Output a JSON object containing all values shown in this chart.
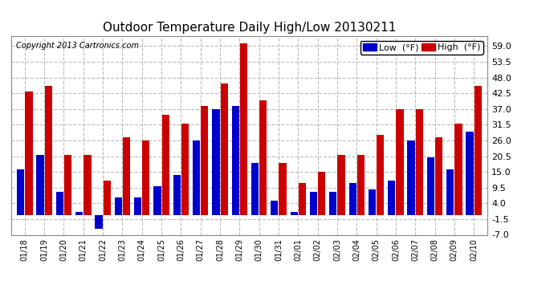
{
  "title": "Outdoor Temperature Daily High/Low 20130211",
  "copyright": "Copyright 2013 Cartronics.com",
  "legend_low": "Low  (°F)",
  "legend_high": "High  (°F)",
  "low_color": "#0000cc",
  "high_color": "#cc0000",
  "background_color": "#ffffff",
  "plot_bg_color": "#ffffff",
  "grid_color": "#bbbbbb",
  "border_color": "#888888",
  "ylim": [
    -7.0,
    62.5
  ],
  "yticks": [
    -7.0,
    -1.5,
    4.0,
    9.5,
    15.0,
    20.5,
    26.0,
    31.5,
    37.0,
    42.5,
    48.0,
    53.5,
    59.0
  ],
  "dates": [
    "01/18",
    "01/19",
    "01/20",
    "01/21",
    "01/22",
    "01/23",
    "01/24",
    "01/25",
    "01/26",
    "01/27",
    "01/28",
    "01/29",
    "01/30",
    "01/31",
    "02/01",
    "02/02",
    "02/03",
    "02/04",
    "02/05",
    "02/06",
    "02/07",
    "02/08",
    "02/09",
    "02/10"
  ],
  "highs": [
    43.0,
    45.0,
    21.0,
    21.0,
    12.0,
    27.0,
    26.0,
    35.0,
    32.0,
    38.0,
    46.0,
    60.0,
    40.0,
    18.0,
    11.0,
    15.0,
    21.0,
    21.0,
    28.0,
    37.0,
    37.0,
    27.0,
    32.0,
    45.0
  ],
  "lows": [
    16.0,
    21.0,
    8.0,
    1.0,
    -5.0,
    6.0,
    6.0,
    10.0,
    14.0,
    26.0,
    37.0,
    38.0,
    18.0,
    5.0,
    1.0,
    8.0,
    8.0,
    11.0,
    9.0,
    12.0,
    26.0,
    20.0,
    16.0,
    29.0
  ],
  "title_fontsize": 11,
  "copyright_fontsize": 7,
  "tick_fontsize": 8,
  "xtick_fontsize": 7,
  "legend_fontsize": 8,
  "bar_width": 0.38,
  "bar_gap": 0.04
}
